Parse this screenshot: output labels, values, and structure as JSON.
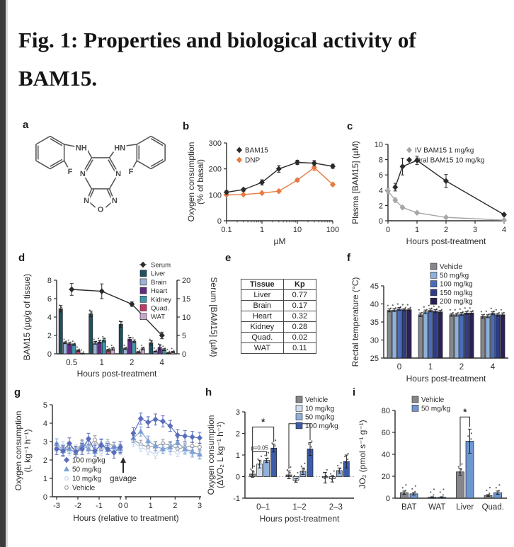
{
  "page": {
    "title": "Fig. 1: Properties and biological activity of BAM15."
  },
  "panels": {
    "a": {
      "label": "a",
      "atom_labels": {
        "nh_left": "NH",
        "hn_right": "HN",
        "f_left": "F",
        "f_right": "F",
        "n_left": "N",
        "n_right": "N",
        "n_fur_left": "N",
        "n_fur_right": "N",
        "o": "O"
      }
    },
    "b": {
      "label": "b"
    },
    "c": {
      "label": "c"
    },
    "d": {
      "label": "d"
    },
    "e": {
      "label": "e"
    },
    "f": {
      "label": "f"
    },
    "g": {
      "label": "g"
    },
    "h": {
      "label": "h"
    },
    "i": {
      "label": "i"
    }
  },
  "chart_data": [
    {
      "panel": "b",
      "type": "line",
      "log_x": true,
      "x": [
        0.1,
        0.3,
        1,
        3,
        10,
        30,
        100
      ],
      "series": [
        {
          "name": "BAM15",
          "color": "#2b2b2b",
          "values": [
            110,
            120,
            148,
            200,
            225,
            222,
            210
          ],
          "errors": [
            6,
            6,
            10,
            13,
            8,
            10,
            8
          ]
        },
        {
          "name": "DNP",
          "color": "#e8793f",
          "values": [
            100,
            101,
            107,
            114,
            157,
            205,
            140
          ],
          "errors": [
            4,
            3,
            4,
            4,
            6,
            12,
            6
          ]
        }
      ],
      "xlabel": "µM",
      "ylabel": [
        "Oxygen consumption",
        "(% of basal)"
      ],
      "ylim": [
        0,
        300
      ],
      "yticks": [
        0,
        100,
        200,
        300
      ],
      "xticks": [
        0.1,
        1,
        10,
        100
      ],
      "legend_pos": "top-left"
    },
    {
      "panel": "c",
      "type": "line",
      "series": [
        {
          "name": "IV BAM15 1 mg/kg",
          "color": "#a6a6a6",
          "x": [
            0,
            0.25,
            0.5,
            1,
            2,
            4
          ],
          "values": [
            3.9,
            2.7,
            1.75,
            1.05,
            0.45,
            0.08
          ],
          "errors": [
            0.35,
            0.3,
            0.2,
            0.15,
            0.1,
            0.05
          ]
        },
        {
          "name": "Oral BAM15 10 mg/kg",
          "color": "#2b2b2b",
          "x": [
            0.25,
            0.5,
            1,
            2,
            4
          ],
          "values": [
            4.4,
            7.1,
            7.9,
            5.2,
            0.8
          ],
          "errors": [
            0.5,
            1.1,
            0.55,
            0.85,
            0.15
          ]
        }
      ],
      "xlabel": "Hours post-treatment",
      "ylabel": [
        "Plasma [BAM15] (µM)"
      ],
      "ylim": [
        0,
        10
      ],
      "yticks": [
        0,
        2,
        4,
        6,
        8,
        10
      ],
      "xticks": [
        0,
        1,
        2,
        3,
        4
      ],
      "legend_pos": "top"
    },
    {
      "panel": "d",
      "type": "bar-line",
      "categories": [
        "0.5",
        "1",
        "2",
        "4"
      ],
      "bar_series": [
        {
          "name": "Liver",
          "color": "#1f505f",
          "values": [
            4.9,
            4.35,
            3.2,
            1.2
          ],
          "errors": [
            0.35,
            0.3,
            0.3,
            0.25
          ]
        },
        {
          "name": "Brain",
          "color": "#9ab1d8",
          "values": [
            1.2,
            1.2,
            0.55,
            0.25
          ],
          "errors": [
            0.1,
            0.15,
            0.08,
            0.05
          ]
        },
        {
          "name": "Heart",
          "color": "#5f2d84",
          "values": [
            1.1,
            1.3,
            1.6,
            0.7
          ],
          "errors": [
            0.1,
            0.15,
            0.2,
            0.3
          ]
        },
        {
          "name": "Kidney",
          "color": "#3e97aa",
          "values": [
            1.0,
            1.5,
            1.35,
            0.45
          ],
          "errors": [
            0.08,
            0.2,
            0.15,
            0.1
          ]
        },
        {
          "name": "Quad.",
          "color": "#c23a66",
          "values": [
            0.35,
            0.4,
            0.2,
            0.1
          ],
          "errors": [
            0.08,
            0.1,
            0.05,
            0.04
          ]
        },
        {
          "name": "WAT",
          "color": "#c7a6cd",
          "values": [
            0.05,
            0.55,
            0.55,
            0.2
          ],
          "errors": [
            0.02,
            0.15,
            0.12,
            0.06
          ]
        }
      ],
      "line_series": {
        "name": "Serum",
        "color": "#2b2b2b",
        "values": [
          17.5,
          17.0,
          13.5,
          5.0
        ],
        "errors": [
          1.6,
          2.0,
          0.6,
          0.9
        ]
      },
      "xlabel": "Hours post-treatment",
      "ylabel_left": [
        "BAM15 (µg/g of tissue)"
      ],
      "ylim_left": [
        0,
        8
      ],
      "yticks_left": [
        0,
        2,
        4,
        6,
        8
      ],
      "ylabel_right": [
        "Serum [BAM15] (µM)"
      ],
      "ylim_right": [
        0,
        20
      ],
      "yticks_right": [
        0,
        5,
        10,
        15,
        20
      ]
    },
    {
      "panel": "e",
      "type": "table",
      "headers": [
        "Tissue",
        "Kp"
      ],
      "rows": [
        [
          "Liver",
          "0.77"
        ],
        [
          "Brain",
          "0.17"
        ],
        [
          "Heart",
          "0.32"
        ],
        [
          "Kidney",
          "0.28"
        ],
        [
          "Quad.",
          "0.02"
        ],
        [
          "WAT",
          "0.11"
        ]
      ]
    },
    {
      "panel": "f",
      "type": "bar",
      "categories": [
        "0",
        "1",
        "2",
        "4"
      ],
      "series": [
        {
          "name": "Vehicle",
          "color": "#85878c",
          "values": [
            38.2,
            37.0,
            37.0,
            36.5
          ],
          "errors": [
            0.4,
            0.5,
            0.4,
            0.5
          ]
        },
        {
          "name": "50 mg/kg",
          "color": "#8fb0da",
          "values": [
            38.3,
            37.8,
            37.0,
            36.6
          ],
          "errors": [
            0.4,
            0.5,
            0.4,
            0.4
          ]
        },
        {
          "name": "100 mg/kg",
          "color": "#4b6cb8",
          "values": [
            38.6,
            38.2,
            37.2,
            37.4
          ],
          "errors": [
            0.4,
            0.4,
            0.4,
            0.4
          ]
        },
        {
          "name": "150 mg/kg",
          "color": "#2f3d85",
          "values": [
            38.4,
            38.0,
            37.5,
            37.0
          ],
          "errors": [
            0.3,
            0.4,
            0.4,
            0.4
          ]
        },
        {
          "name": "200 mg/kg",
          "color": "#2c2157",
          "values": [
            38.4,
            37.8,
            37.5,
            37.0
          ],
          "errors": [
            0.3,
            0.4,
            0.4,
            0.5
          ]
        }
      ],
      "xlabel": "Hours post-treatment",
      "ylabel": [
        "Rectal temperature (°C)"
      ],
      "ylim": [
        25,
        45
      ],
      "yticks": [
        25,
        30,
        35,
        40,
        45
      ],
      "legend_pos": "top-right"
    },
    {
      "panel": "g",
      "type": "line-break",
      "x_pre": [
        -3,
        -2.7,
        -2.4,
        -2.1,
        -1.8,
        -1.5,
        -1.2,
        -0.9,
        -0.6,
        -0.3,
        0
      ],
      "x_post": [
        0.3,
        0.6,
        0.9,
        1.2,
        1.5,
        1.8,
        2.1,
        2.4,
        2.7,
        3.0
      ],
      "series": [
        {
          "name": "100 mg/kg",
          "color": "#5b6dbd",
          "pre": [
            2.6,
            2.5,
            2.9,
            2.45,
            2.6,
            3.15,
            2.5,
            2.8,
            2.6,
            2.4,
            2.7
          ],
          "post": [
            3.45,
            4.25,
            4.05,
            4.2,
            4.1,
            3.85,
            3.35,
            3.3,
            3.25,
            3.2
          ],
          "err": 0.3
        },
        {
          "name": "50 mg/kg",
          "color": "#7c9fd4",
          "pre": [
            2.9,
            2.5,
            2.6,
            2.4,
            2.8,
            2.6,
            2.45,
            2.9,
            2.55,
            2.7,
            2.6
          ],
          "post": [
            3.2,
            3.55,
            3.05,
            2.75,
            2.6,
            2.7,
            2.95,
            2.6,
            2.45,
            2.3
          ],
          "err": 0.25
        },
        {
          "name": "10 mg/kg",
          "color": "#c3d4ec",
          "open": true,
          "pre": [
            2.5,
            2.8,
            2.45,
            2.6,
            2.5,
            2.9,
            2.6,
            2.45,
            2.8,
            2.6,
            2.5
          ],
          "post": [
            2.95,
            2.7,
            2.5,
            2.3,
            2.65,
            2.5,
            2.4,
            2.5,
            2.35,
            2.3
          ],
          "err": 0.22
        },
        {
          "name": "Vehicle",
          "color": "#999999",
          "open": true,
          "pre": [
            2.7,
            2.45,
            2.75,
            2.5,
            2.9,
            2.7,
            3.1,
            2.6,
            2.9,
            2.75,
            2.6
          ],
          "post": [
            3.1,
            2.85,
            2.7,
            2.75,
            2.9,
            2.8,
            2.6,
            2.7,
            2.75,
            2.7
          ],
          "err": 0.22
        }
      ],
      "annotation": "gavage",
      "xlabel": "Hours (relative to treatment)",
      "ylabel": [
        "Oxygen consumption",
        "(L kg⁻¹ h⁻¹)"
      ],
      "ylim": [
        0,
        5
      ],
      "yticks": [
        0,
        1,
        2,
        3,
        4,
        5
      ],
      "xticks_pre": [
        -3,
        -2,
        -1,
        0
      ],
      "xticks_post": [
        0,
        1,
        2,
        3
      ]
    },
    {
      "panel": "h",
      "type": "bar",
      "categories": [
        "0–1",
        "1–2",
        "2–3"
      ],
      "series": [
        {
          "name": "Vehicle",
          "color": "#85878c",
          "values": [
            0.12,
            0.08,
            -0.05
          ],
          "errors": [
            0.15,
            0.18,
            0.25
          ]
        },
        {
          "name": "10 mg/kg",
          "color": "#cfdeef",
          "values": [
            0.58,
            -0.18,
            -0.1
          ],
          "errors": [
            0.18,
            0.08,
            0.15
          ]
        },
        {
          "name": "50 mg/kg",
          "color": "#8fb0da",
          "values": [
            0.75,
            0.25,
            0.28
          ],
          "errors": [
            0.1,
            0.15,
            0.12
          ]
        },
        {
          "name": "100 mg/kg",
          "color": "#3c5caa",
          "values": [
            1.32,
            1.28,
            0.7
          ],
          "errors": [
            0.18,
            0.3,
            0.3
          ]
        }
      ],
      "brackets": [
        {
          "group": 0,
          "from": 0,
          "to": 3,
          "y": 2.3,
          "label": "*"
        },
        {
          "group": 0,
          "from": 0,
          "to": 2,
          "y": 1.15,
          "label": "p=0.05"
        },
        {
          "group": 1,
          "from": 0,
          "to": 3,
          "y": 2.45,
          "label": "*"
        }
      ],
      "zero_line": true,
      "xlabel": "Hours post-treatment",
      "ylabel": [
        "Oxygen consumption",
        "(ΔVO₂ L kg⁻¹ h⁻¹)"
      ],
      "ylim": [
        -1,
        3
      ],
      "yticks": [
        -1,
        0,
        1,
        2,
        3
      ],
      "legend_pos": "top-right"
    },
    {
      "panel": "i",
      "type": "bar",
      "categories": [
        "BAT",
        "WAT",
        "Liver",
        "Quad."
      ],
      "series": [
        {
          "name": "Vehicle",
          "color": "#85878c",
          "values": [
            5,
            1,
            24,
            2.5
          ],
          "errors": [
            1.5,
            0.3,
            3,
            0.8
          ]
        },
        {
          "name": "50 mg/kg",
          "color": "#6e96cf",
          "values": [
            4,
            1,
            52,
            5
          ],
          "errors": [
            1.2,
            0.3,
            11,
            1.5
          ]
        }
      ],
      "brackets": [
        {
          "group": 2,
          "from": 0,
          "to": 1,
          "y": 74,
          "label": "*"
        }
      ],
      "xlabel": "",
      "ylabel": [
        "JO₂ (pmol s⁻¹ g⁻¹)"
      ],
      "ylim": [
        0,
        80
      ],
      "yticks": [
        0,
        20,
        40,
        60,
        80
      ],
      "legend_pos": "top-left"
    }
  ]
}
